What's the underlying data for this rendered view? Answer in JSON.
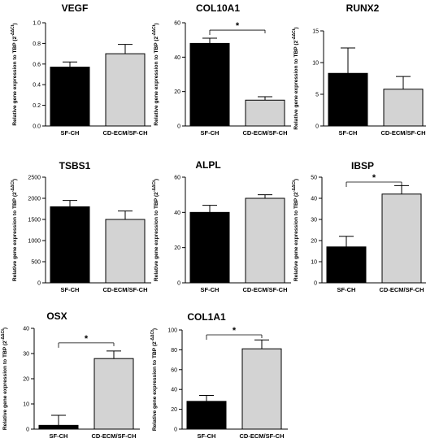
{
  "figure": {
    "ylabel_main": "Relative gene expression to TBP",
    "ylabel_formula": "(2",
    "ylabel_exp": "-ΔΔCt",
    "ylabel_close": ")"
  },
  "chart_data": [
    {
      "type": "bar",
      "title": "VEGF",
      "categories": [
        "SF-CH",
        "CD-ECM/SF-CH"
      ],
      "values": [
        0.57,
        0.7
      ],
      "errors": [
        0.05,
        0.09
      ],
      "bar_colors": [
        "#000000",
        "#d3d3d3"
      ],
      "ylim": [
        0,
        1.0
      ],
      "yticks": [
        "0.0",
        "0.2",
        "0.4",
        "0.6",
        "0.8",
        "1.0"
      ],
      "significant": false
    },
    {
      "type": "bar",
      "title": "COL10A1",
      "categories": [
        "SF-CH",
        "CD-ECM/SF-CH"
      ],
      "values": [
        48,
        15
      ],
      "errors": [
        3,
        2
      ],
      "bar_colors": [
        "#000000",
        "#d3d3d3"
      ],
      "ylim": [
        0,
        60
      ],
      "yticks": [
        "0",
        "20",
        "40",
        "60"
      ],
      "significant": true,
      "sig_label": "*"
    },
    {
      "type": "bar",
      "title": "RUNX2",
      "categories": [
        "SF-CH",
        "CD-ECM/SF-CH"
      ],
      "values": [
        8.3,
        5.8
      ],
      "errors": [
        4.0,
        2.0
      ],
      "bar_colors": [
        "#000000",
        "#d3d3d3"
      ],
      "ylim": [
        0,
        15
      ],
      "yticks": [
        "0",
        "5",
        "10",
        "15"
      ],
      "significant": false
    },
    {
      "type": "bar",
      "title": "TSBS1",
      "categories": [
        "SF-CH",
        "CD-ECM/SF-CH"
      ],
      "values": [
        1800,
        1500
      ],
      "errors": [
        150,
        200
      ],
      "bar_colors": [
        "#000000",
        "#d3d3d3"
      ],
      "ylim": [
        0,
        2500
      ],
      "yticks": [
        "0",
        "500",
        "1000",
        "1500",
        "2000",
        "2500"
      ],
      "significant": false
    },
    {
      "type": "bar",
      "title": "ALPL",
      "categories": [
        "SF-CH",
        "CD-ECM/SF-CH"
      ],
      "values": [
        40,
        48
      ],
      "errors": [
        4,
        2
      ],
      "bar_colors": [
        "#000000",
        "#d3d3d3"
      ],
      "ylim": [
        0,
        60
      ],
      "yticks": [
        "0",
        "20",
        "40",
        "60"
      ],
      "significant": false
    },
    {
      "type": "bar",
      "title": "IBSP",
      "categories": [
        "SF-CH",
        "CD-ECM/SF-CH"
      ],
      "values": [
        17,
        42
      ],
      "errors": [
        5,
        4
      ],
      "bar_colors": [
        "#000000",
        "#d3d3d3"
      ],
      "ylim": [
        0,
        50
      ],
      "yticks": [
        "0",
        "10",
        "20",
        "30",
        "40",
        "50"
      ],
      "significant": true,
      "sig_label": "*"
    },
    {
      "type": "bar",
      "title": "OSX",
      "categories": [
        "SF-CH",
        "CD-ECM/SF-CH"
      ],
      "values": [
        1.5,
        28
      ],
      "errors": [
        4,
        3
      ],
      "bar_colors": [
        "#000000",
        "#d3d3d3"
      ],
      "ylim": [
        0,
        40
      ],
      "yticks": [
        "0",
        "10",
        "20",
        "30",
        "40"
      ],
      "significant": true,
      "sig_label": "*"
    },
    {
      "type": "bar",
      "title": "COL1A1",
      "categories": [
        "SF-CH",
        "CD-ECM/SF-CH"
      ],
      "values": [
        28,
        81
      ],
      "errors": [
        6,
        9
      ],
      "bar_colors": [
        "#000000",
        "#d3d3d3"
      ],
      "ylim": [
        0,
        100
      ],
      "yticks": [
        "0",
        "20",
        "40",
        "60",
        "80",
        "100"
      ],
      "significant": true,
      "sig_label": "*"
    }
  ]
}
